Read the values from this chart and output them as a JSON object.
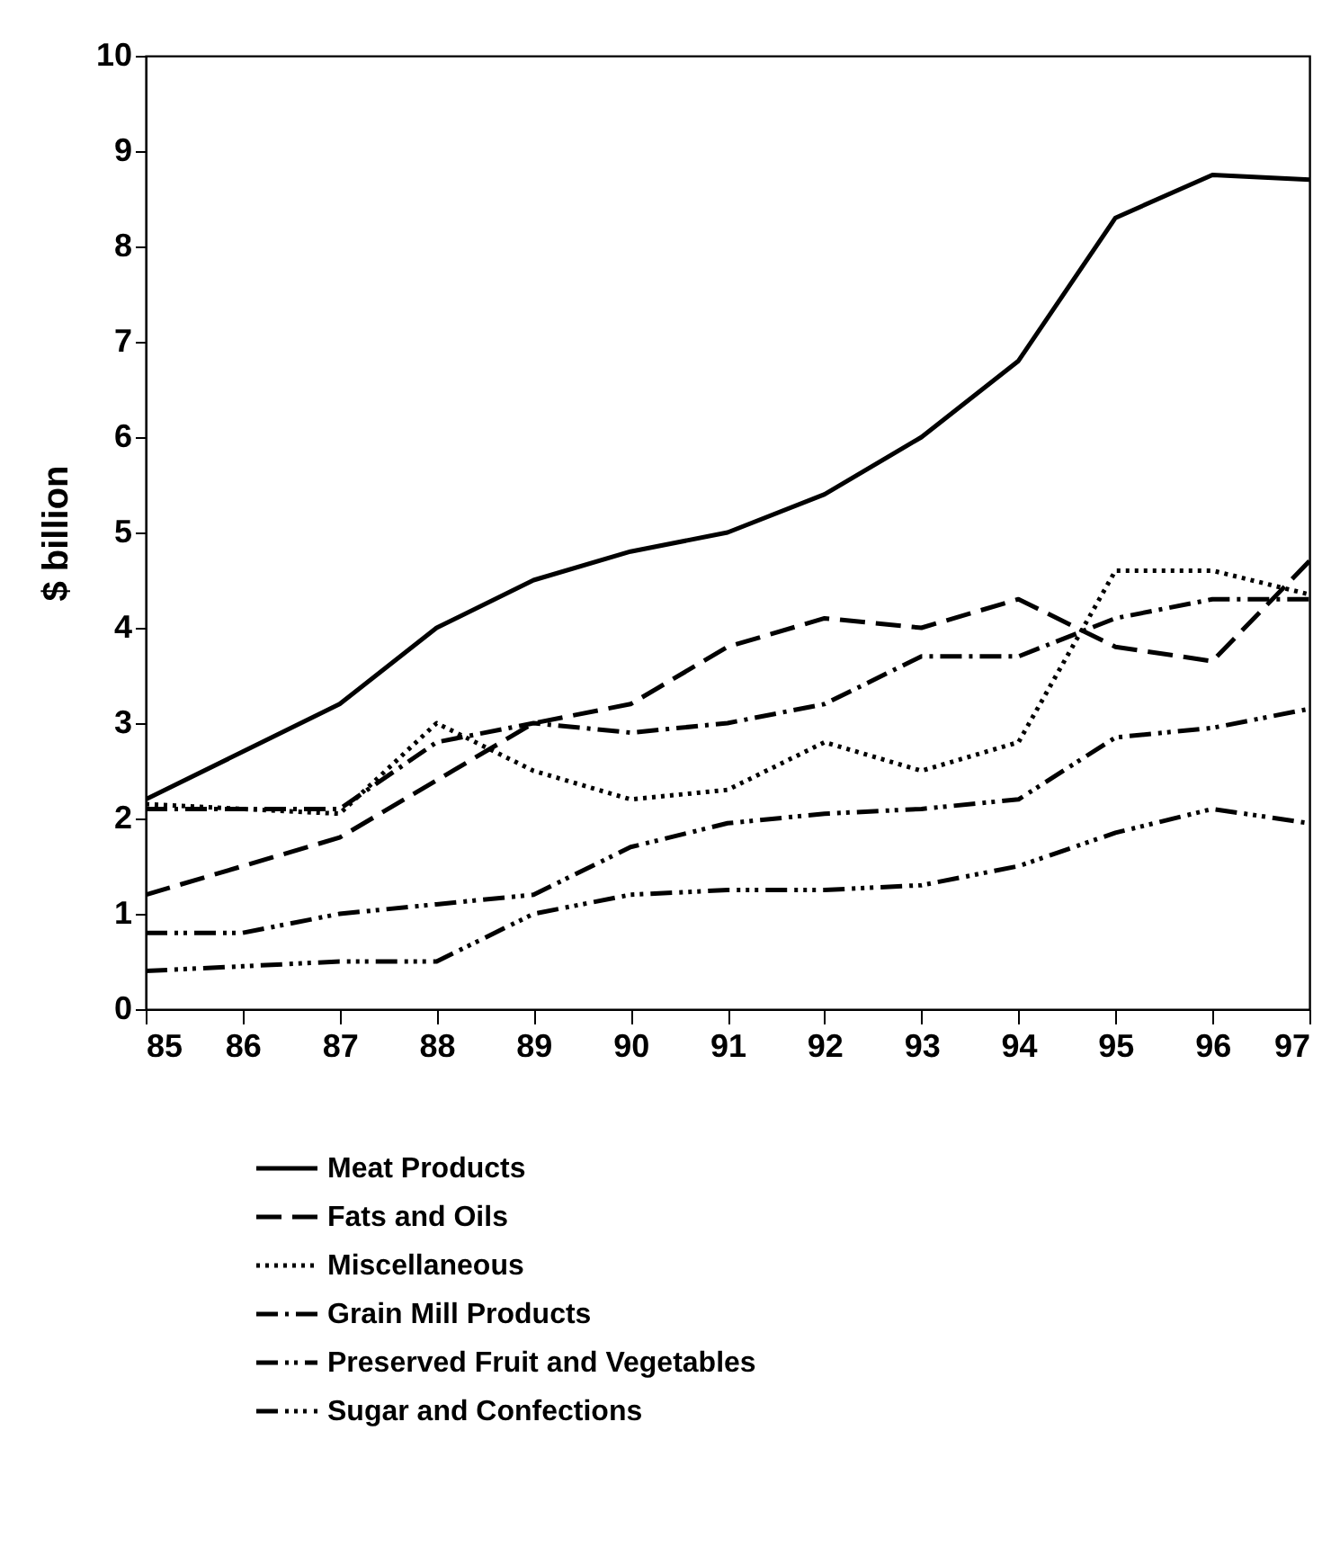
{
  "chart_data": {
    "type": "line",
    "ylabel": "$ billion",
    "categories": [
      "85",
      "86",
      "87",
      "88",
      "89",
      "90",
      "91",
      "92",
      "93",
      "94",
      "95",
      "96",
      "97"
    ],
    "ylim": [
      0,
      10
    ],
    "yticks": [
      0,
      1,
      2,
      3,
      4,
      5,
      6,
      7,
      8,
      9,
      10
    ],
    "grid": false,
    "legend": "bottom",
    "marker": "none",
    "series": [
      {
        "name": "Meat Products",
        "color": "#000000",
        "line_style": "solid",
        "values": [
          2.2,
          2.7,
          3.2,
          4.0,
          4.5,
          4.8,
          5.0,
          5.4,
          6.0,
          6.8,
          8.3,
          8.75,
          8.7
        ]
      },
      {
        "name": "Fats and Oils",
        "color": "#000000",
        "line_style": "dashed",
        "values": [
          1.2,
          1.5,
          1.8,
          2.4,
          3.0,
          3.2,
          3.8,
          4.1,
          4.0,
          4.3,
          3.8,
          3.65,
          4.7
        ]
      },
      {
        "name": "Miscellaneous",
        "color": "#000000",
        "line_style": "dotted",
        "values": [
          2.15,
          2.1,
          2.05,
          3.0,
          2.5,
          2.2,
          2.3,
          2.8,
          2.5,
          2.8,
          4.6,
          4.6,
          4.35
        ]
      },
      {
        "name": "Grain Mill Products",
        "color": "#000000",
        "line_style": "dashdot",
        "values": [
          2.1,
          2.1,
          2.1,
          2.8,
          3.0,
          2.9,
          3.0,
          3.2,
          3.7,
          3.7,
          4.1,
          4.3,
          4.3
        ]
      },
      {
        "name": "Preserved Fruit and Vegetables",
        "color": "#000000",
        "line_style": "dashdotdot",
        "values": [
          0.8,
          0.8,
          1.0,
          1.1,
          1.2,
          1.7,
          1.95,
          2.05,
          2.1,
          2.2,
          2.85,
          2.95,
          3.15
        ]
      },
      {
        "name": "Sugar and Confections",
        "color": "#000000",
        "line_style": "dashdotdotdot",
        "values": [
          0.4,
          0.45,
          0.5,
          0.5,
          1.0,
          1.2,
          1.25,
          1.25,
          1.3,
          1.5,
          1.85,
          2.1,
          1.95
        ]
      }
    ]
  }
}
